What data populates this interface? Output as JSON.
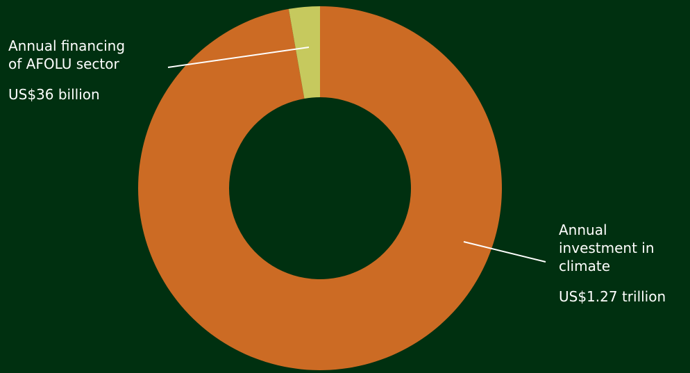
{
  "colors": {
    "background": "#003010",
    "leader_line": "#ffffff"
  },
  "chart_data": {
    "type": "pie",
    "donut": true,
    "title": "",
    "slices": [
      {
        "label": "Annual\ninvestment in\nclimate",
        "display_value": "US$1.27 trillion",
        "value": 1270,
        "unit": "US$ billion",
        "color": "#cc6b24"
      },
      {
        "label": "Annual financing\nof AFOLU sector",
        "display_value": "US$36 billion",
        "value": 36,
        "unit": "US$ billion",
        "color": "#c6c95e"
      }
    ]
  }
}
